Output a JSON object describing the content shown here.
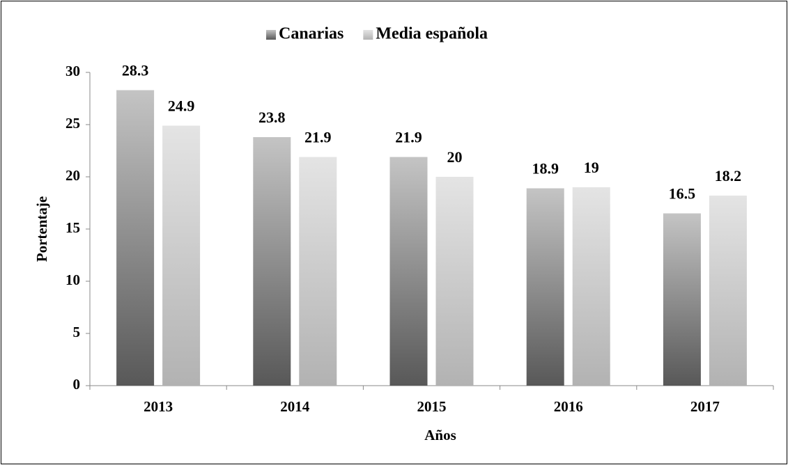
{
  "chart_data": {
    "type": "bar",
    "categories": [
      "2013",
      "2014",
      "2015",
      "2016",
      "2017"
    ],
    "series": [
      {
        "name": "Canarias",
        "color": "#c4c4c4",
        "values": [
          28.3,
          23.8,
          21.9,
          18.9,
          16.5
        ]
      },
      {
        "name": "Media española",
        "color": "#e4e4e4",
        "values": [
          24.9,
          21.9,
          20,
          19,
          18.2
        ]
      }
    ],
    "ylim": [
      0,
      30
    ],
    "yticks": [
      0,
      5,
      10,
      15,
      20,
      25,
      30
    ],
    "y_label": "Portentaje",
    "x_label": "Años",
    "legend": "top"
  }
}
